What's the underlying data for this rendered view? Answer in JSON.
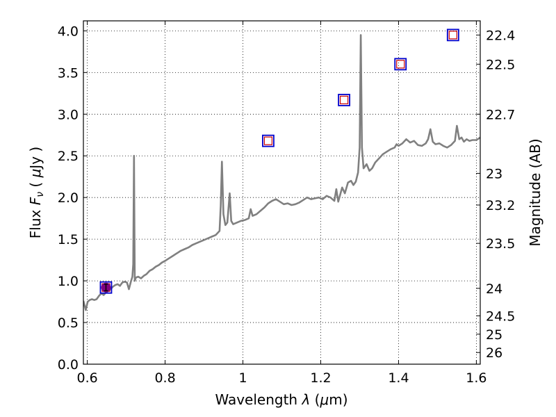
{
  "chart_data": {
    "type": "line",
    "title": "",
    "xlabel_parts": [
      "Wavelength ",
      "λ",
      " (",
      "μ",
      "m)"
    ],
    "ylabel_parts": [
      "Flux ",
      "F",
      "ν",
      "  ( ",
      "μ",
      "Jy )"
    ],
    "y2label": "Magnitude (AB)",
    "xlim": [
      0.59,
      1.61
    ],
    "ylim": [
      0.0,
      4.12
    ],
    "grid": true,
    "x_ticks": [
      {
        "value": 0.6,
        "label": "0.6"
      },
      {
        "value": 0.8,
        "label": "0.8"
      },
      {
        "value": 1.0,
        "label": "1"
      },
      {
        "value": 1.2,
        "label": "1.2"
      },
      {
        "value": 1.4,
        "label": "1.4"
      },
      {
        "value": 1.6,
        "label": "1.6"
      }
    ],
    "y_ticks": [
      {
        "value": 0.0,
        "label": "0.0"
      },
      {
        "value": 0.5,
        "label": "0.5"
      },
      {
        "value": 1.0,
        "label": "1.0"
      },
      {
        "value": 1.5,
        "label": "1.5"
      },
      {
        "value": 2.0,
        "label": "2.0"
      },
      {
        "value": 2.5,
        "label": "2.5"
      },
      {
        "value": 3.0,
        "label": "3.0"
      },
      {
        "value": 3.5,
        "label": "3.5"
      },
      {
        "value": 4.0,
        "label": "4.0"
      }
    ],
    "y2_ticks": [
      {
        "flux": 3.95,
        "label": "22.4"
      },
      {
        "flux": 3.6,
        "label": "22.5"
      },
      {
        "flux": 3.0,
        "label": "22.7"
      },
      {
        "flux": 2.29,
        "label": "23"
      },
      {
        "flux": 1.91,
        "label": "23.2"
      },
      {
        "flux": 1.45,
        "label": "23.5"
      },
      {
        "flux": 0.91,
        "label": "24"
      },
      {
        "flux": 0.58,
        "label": "24.5"
      },
      {
        "flux": 0.36,
        "label": "25"
      },
      {
        "flux": 0.14,
        "label": "26"
      }
    ],
    "colors": {
      "spectrum": "#808080",
      "model_marker_outer": "#0000cc",
      "model_marker_inner": "#cc0000",
      "observed_marker": "#800080",
      "grid": "#000000"
    },
    "series": [
      {
        "kind": "spectrum",
        "points": [
          [
            0.59,
            0.76
          ],
          [
            0.596,
            0.65
          ],
          [
            0.601,
            0.75
          ],
          [
            0.606,
            0.77
          ],
          [
            0.612,
            0.78
          ],
          [
            0.618,
            0.77
          ],
          [
            0.624,
            0.78
          ],
          [
            0.63,
            0.82
          ],
          [
            0.636,
            0.85
          ],
          [
            0.642,
            0.83
          ],
          [
            0.648,
            0.86
          ],
          [
            0.654,
            0.88
          ],
          [
            0.66,
            0.9
          ],
          [
            0.666,
            0.93
          ],
          [
            0.672,
            0.95
          ],
          [
            0.678,
            0.96
          ],
          [
            0.684,
            0.94
          ],
          [
            0.69,
            0.98
          ],
          [
            0.696,
            0.99
          ],
          [
            0.702,
            0.98
          ],
          [
            0.707,
            0.9
          ],
          [
            0.712,
            0.99
          ],
          [
            0.716,
            1.05
          ],
          [
            0.718,
            1.2
          ],
          [
            0.72,
            2.5
          ],
          [
            0.722,
            1.0
          ],
          [
            0.725,
            1.04
          ],
          [
            0.731,
            1.05
          ],
          [
            0.738,
            1.03
          ],
          [
            0.745,
            1.06
          ],
          [
            0.752,
            1.08
          ],
          [
            0.76,
            1.12
          ],
          [
            0.768,
            1.14
          ],
          [
            0.776,
            1.17
          ],
          [
            0.784,
            1.19
          ],
          [
            0.792,
            1.22
          ],
          [
            0.8,
            1.24
          ],
          [
            0.81,
            1.27
          ],
          [
            0.82,
            1.3
          ],
          [
            0.83,
            1.33
          ],
          [
            0.84,
            1.36
          ],
          [
            0.85,
            1.38
          ],
          [
            0.86,
            1.4
          ],
          [
            0.87,
            1.43
          ],
          [
            0.88,
            1.45
          ],
          [
            0.89,
            1.47
          ],
          [
            0.9,
            1.49
          ],
          [
            0.91,
            1.51
          ],
          [
            0.92,
            1.53
          ],
          [
            0.93,
            1.55
          ],
          [
            0.94,
            1.6
          ],
          [
            0.943,
            1.9
          ],
          [
            0.946,
            2.43
          ],
          [
            0.95,
            1.8
          ],
          [
            0.955,
            1.67
          ],
          [
            0.96,
            1.7
          ],
          [
            0.966,
            2.05
          ],
          [
            0.97,
            1.72
          ],
          [
            0.975,
            1.68
          ],
          [
            0.985,
            1.7
          ],
          [
            0.995,
            1.72
          ],
          [
            1.005,
            1.73
          ],
          [
            1.015,
            1.75
          ],
          [
            1.02,
            1.86
          ],
          [
            1.025,
            1.78
          ],
          [
            1.035,
            1.8
          ],
          [
            1.045,
            1.84
          ],
          [
            1.055,
            1.88
          ],
          [
            1.065,
            1.93
          ],
          [
            1.075,
            1.96
          ],
          [
            1.085,
            1.98
          ],
          [
            1.095,
            1.95
          ],
          [
            1.105,
            1.92
          ],
          [
            1.115,
            1.93
          ],
          [
            1.125,
            1.91
          ],
          [
            1.135,
            1.92
          ],
          [
            1.145,
            1.94
          ],
          [
            1.155,
            1.97
          ],
          [
            1.165,
            2.0
          ],
          [
            1.175,
            1.98
          ],
          [
            1.185,
            1.99
          ],
          [
            1.195,
            2.0
          ],
          [
            1.205,
            1.98
          ],
          [
            1.215,
            2.02
          ],
          [
            1.225,
            2.0
          ],
          [
            1.235,
            1.96
          ],
          [
            1.24,
            2.1
          ],
          [
            1.245,
            1.95
          ],
          [
            1.255,
            2.12
          ],
          [
            1.262,
            2.05
          ],
          [
            1.27,
            2.18
          ],
          [
            1.278,
            2.2
          ],
          [
            1.284,
            2.15
          ],
          [
            1.29,
            2.19
          ],
          [
            1.296,
            2.3
          ],
          [
            1.3,
            2.6
          ],
          [
            1.303,
            3.95
          ],
          [
            1.306,
            2.6
          ],
          [
            1.31,
            2.35
          ],
          [
            1.318,
            2.4
          ],
          [
            1.325,
            2.32
          ],
          [
            1.332,
            2.35
          ],
          [
            1.34,
            2.42
          ],
          [
            1.35,
            2.47
          ],
          [
            1.36,
            2.52
          ],
          [
            1.37,
            2.55
          ],
          [
            1.38,
            2.58
          ],
          [
            1.39,
            2.6
          ],
          [
            1.395,
            2.64
          ],
          [
            1.4,
            2.62
          ],
          [
            1.41,
            2.65
          ],
          [
            1.42,
            2.7
          ],
          [
            1.43,
            2.66
          ],
          [
            1.44,
            2.68
          ],
          [
            1.45,
            2.63
          ],
          [
            1.46,
            2.62
          ],
          [
            1.47,
            2.65
          ],
          [
            1.476,
            2.7
          ],
          [
            1.482,
            2.82
          ],
          [
            1.488,
            2.67
          ],
          [
            1.495,
            2.64
          ],
          [
            1.505,
            2.65
          ],
          [
            1.515,
            2.62
          ],
          [
            1.525,
            2.6
          ],
          [
            1.535,
            2.63
          ],
          [
            1.545,
            2.68
          ],
          [
            1.55,
            2.86
          ],
          [
            1.556,
            2.7
          ],
          [
            1.562,
            2.72
          ],
          [
            1.568,
            2.67
          ],
          [
            1.575,
            2.7
          ],
          [
            1.582,
            2.68
          ],
          [
            1.59,
            2.69
          ],
          [
            1.6,
            2.69
          ],
          [
            1.61,
            2.72
          ]
        ]
      },
      {
        "kind": "model_photometry",
        "points": [
          {
            "x": 0.648,
            "y": 0.92
          },
          {
            "x": 1.065,
            "y": 2.68
          },
          {
            "x": 1.26,
            "y": 3.17
          },
          {
            "x": 1.405,
            "y": 3.6
          },
          {
            "x": 1.54,
            "y": 3.95
          }
        ]
      },
      {
        "kind": "observed_photometry",
        "points": [
          {
            "x": 0.648,
            "y": 0.92,
            "yerr": 0.04
          }
        ]
      }
    ]
  }
}
